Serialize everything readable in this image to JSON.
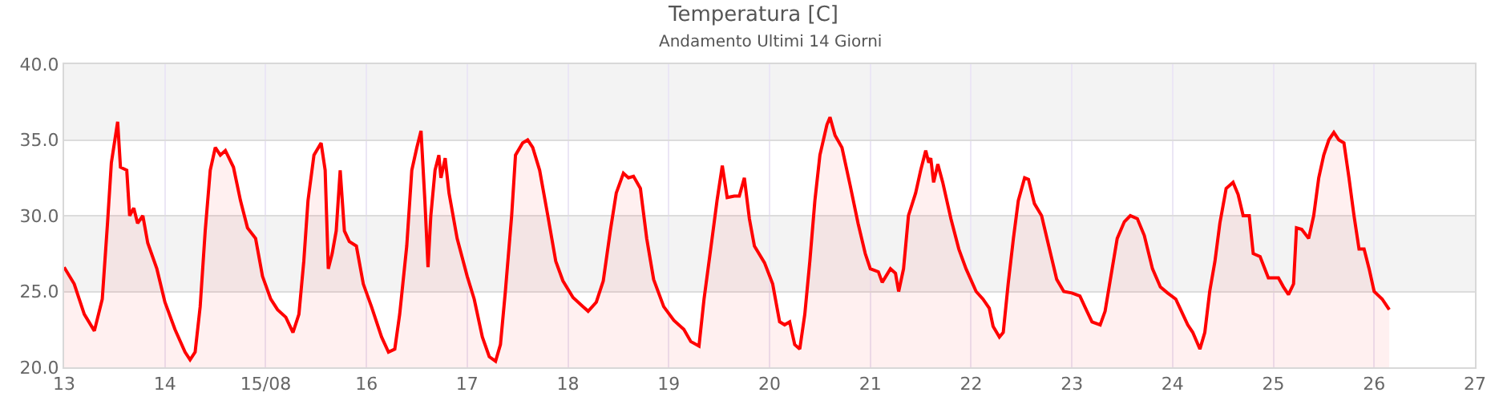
{
  "chart_data": {
    "type": "area",
    "title": "Temperatura [C]",
    "subtitle": "Andamento Ultimi 14 Giorni",
    "x": [
      "--08-13T00:00",
      "--08-13T02:24",
      "--08-13T04:48",
      "--08-13T07:12",
      "--08-13T09:05",
      "--08-13T10:20",
      "--08-13T11:15",
      "--08-13T12:45",
      "--08-13T13:25",
      "--08-13T14:55",
      "--08-13T15:36",
      "--08-13T16:35",
      "--08-13T17:30",
      "--08-13T18:45",
      "--08-13T19:55",
      "--08-13T22:05",
      "--08-14T00:00",
      "--08-14T02:24",
      "--08-14T04:48",
      "--08-14T06:00",
      "--08-14T07:12",
      "--08-14T08:24",
      "--08-14T09:36",
      "--08-14T10:48",
      "--08-14T12:00",
      "--08-14T13:12",
      "--08-14T14:24",
      "--08-14T16:20",
      "--08-14T18:00",
      "--08-14T19:40",
      "--08-14T21:36",
      "--08-14T23:15",
      "--08-15T01:12",
      "--08-15T02:50",
      "--08-15T04:48",
      "--08-15T06:30",
      "--08-15T07:55",
      "--08-15T09:05",
      "--08-15T10:05",
      "--08-15T11:30",
      "--08-15T13:12",
      "--08-15T14:10",
      "--08-15T14:55",
      "--08-15T15:50",
      "--08-15T16:48",
      "--08-15T17:45",
      "--08-15T18:45",
      "--08-15T19:55",
      "--08-15T21:36",
      "--08-15T23:15",
      "--08-16T01:12",
      "--08-16T03:36",
      "--08-16T05:15",
      "--08-16T06:45",
      "--08-16T07:55",
      "--08-16T09:36",
      "--08-16T10:48",
      "--08-16T12:00",
      "--08-16T13:00",
      "--08-16T13:55",
      "--08-16T14:40",
      "--08-16T15:20",
      "--08-16T16:20",
      "--08-16T17:15",
      "--08-16T17:45",
      "--08-16T18:45",
      "--08-16T19:40",
      "--08-16T21:36",
      "--08-17T00:00",
      "--08-17T01:40",
      "--08-17T03:36",
      "--08-17T05:15",
      "--08-17T06:45",
      "--08-17T07:55",
      "--08-17T09:05",
      "--08-17T10:35",
      "--08-17T11:30",
      "--08-17T13:12",
      "--08-17T14:24",
      "--08-17T15:36",
      "--08-17T17:15",
      "--08-17T19:12",
      "--08-17T21:05",
      "--08-17T22:48",
      "--08-18T01:12",
      "--08-18T03:36",
      "--08-18T04:48",
      "--08-18T06:45",
      "--08-18T08:24",
      "--08-18T10:05",
      "--08-18T11:30",
      "--08-18T13:12",
      "--08-18T14:24",
      "--08-18T15:36",
      "--08-18T17:15",
      "--08-18T18:45",
      "--08-18T20:24",
      "--08-18T22:48",
      "--08-19T01:12",
      "--08-19T03:36",
      "--08-19T05:15",
      "--08-19T07:12",
      "--08-19T08:24",
      "--08-19T10:05",
      "--08-19T11:30",
      "--08-19T12:45",
      "--08-19T13:55",
      "--08-19T15:36",
      "--08-19T16:48",
      "--08-19T18:00",
      "--08-19T19:12",
      "--08-19T20:24",
      "--08-19T22:48",
      "--08-20T00:45",
      "--08-20T02:24",
      "--08-20T03:36",
      "--08-20T04:48",
      "--08-20T06:00",
      "--08-20T07:12",
      "--08-20T08:24",
      "--08-20T09:36",
      "--08-20T10:48",
      "--08-20T12:00",
      "--08-20T13:40",
      "--08-20T14:24",
      "--08-20T15:36",
      "--08-20T17:15",
      "--08-20T19:12",
      "--08-20T21:05",
      "--08-20T22:48",
      "--08-21T00:00",
      "--08-21T01:55",
      "--08-21T02:50",
      "--08-21T04:48",
      "--08-21T06:00",
      "--08-21T06:45",
      "--08-21T07:55",
      "--08-21T09:05",
      "--08-21T10:48",
      "--08-21T12:00",
      "--08-21T13:12",
      "--08-21T13:55",
      "--08-21T14:24",
      "--08-21T15:05",
      "--08-21T16:05",
      "--08-21T17:15",
      "--08-21T19:12",
      "--08-21T21:05",
      "--08-21T22:48",
      "--08-22T01:12",
      "--08-22T02:50",
      "--08-22T04:20",
      "--08-22T05:15",
      "--08-22T06:45",
      "--08-22T07:40",
      "--08-22T08:50",
      "--08-22T10:05",
      "--08-22T11:15",
      "--08-22T12:45",
      "--08-22T13:40",
      "--08-22T15:05",
      "--08-22T16:48",
      "--08-22T18:30",
      "--08-22T20:24",
      "--08-22T22:05",
      "--08-23T00:00",
      "--08-23T01:55",
      "--08-23T03:36",
      "--08-23T04:48",
      "--08-23T06:45",
      "--08-23T07:55",
      "--08-23T09:36",
      "--08-23T10:48",
      "--08-23T12:30",
      "--08-23T13:55",
      "--08-23T15:36",
      "--08-23T17:15",
      "--08-23T19:12",
      "--08-23T21:05",
      "--08-23T22:48",
      "--08-24T00:45",
      "--08-24T01:55",
      "--08-24T03:36",
      "--08-24T04:48",
      "--08-24T06:30",
      "--08-24T07:40",
      "--08-24T08:50",
      "--08-24T10:05",
      "--08-24T11:15",
      "--08-24T12:45",
      "--08-24T14:24",
      "--08-24T15:36",
      "--08-24T16:48",
      "--08-24T18:15",
      "--08-24T19:12",
      "--08-24T20:50",
      "--08-24T22:48",
      "--08-25T01:12",
      "--08-25T02:24",
      "--08-25T03:36",
      "--08-25T04:48",
      "--08-25T05:30",
      "--08-25T06:45",
      "--08-25T08:24",
      "--08-25T09:36",
      "--08-25T10:48",
      "--08-25T12:00",
      "--08-25T13:12",
      "--08-25T14:24",
      "--08-25T15:36",
      "--08-25T16:48",
      "--08-25T18:00",
      "--08-25T19:12",
      "--08-25T20:24",
      "--08-25T21:36",
      "--08-25T22:48",
      "--08-26T00:00",
      "--08-26T01:55",
      "--08-26T03:36"
    ],
    "series": [
      {
        "color": "#ff0000",
        "values": [
          26.6,
          25.5,
          23.5,
          22.4,
          24.5,
          29.5,
          33.5,
          36.2,
          33.2,
          33.0,
          30.0,
          30.5,
          29.5,
          30.0,
          28.2,
          26.5,
          24.3,
          22.5,
          21.0,
          20.5,
          21.0,
          24.0,
          29.0,
          33.0,
          34.5,
          34.0,
          34.3,
          33.2,
          31.0,
          29.2,
          28.5,
          26.0,
          24.5,
          23.8,
          23.3,
          22.3,
          23.5,
          27.0,
          31.0,
          34.0,
          34.8,
          33.0,
          26.5,
          27.5,
          29.0,
          33.0,
          29.0,
          28.3,
          28.0,
          25.5,
          24.0,
          22.0,
          21.0,
          21.2,
          23.5,
          28.0,
          33.0,
          34.5,
          35.6,
          31.0,
          26.6,
          30.0,
          33.0,
          34.0,
          32.5,
          33.8,
          31.5,
          28.5,
          26.0,
          24.5,
          22.0,
          20.7,
          20.4,
          21.5,
          25.0,
          30.0,
          34.0,
          34.8,
          35.0,
          34.5,
          33.0,
          30.0,
          27.0,
          25.7,
          24.6,
          24.0,
          23.7,
          24.3,
          25.7,
          29.0,
          31.5,
          32.8,
          32.5,
          32.6,
          31.8,
          28.5,
          25.8,
          24.0,
          23.1,
          22.5,
          21.7,
          21.4,
          24.5,
          28.0,
          31.0,
          33.3,
          31.2,
          31.3,
          31.3,
          32.5,
          29.8,
          28.0,
          26.9,
          25.5,
          23.0,
          22.8,
          23.0,
          21.5,
          21.2,
          23.5,
          27.0,
          31.0,
          34.0,
          36.0,
          36.5,
          35.3,
          34.5,
          32.0,
          29.5,
          27.5,
          26.5,
          26.3,
          25.6,
          26.5,
          26.2,
          25.0,
          26.5,
          30.0,
          31.5,
          33.0,
          34.3,
          33.5,
          33.8,
          32.2,
          33.4,
          32.2,
          29.8,
          27.8,
          26.5,
          25.0,
          24.5,
          23.9,
          22.7,
          22.0,
          22.3,
          25.5,
          28.5,
          31.0,
          32.5,
          32.4,
          30.8,
          30.0,
          28.0,
          25.8,
          25.0,
          24.9,
          24.7,
          23.7,
          23.0,
          22.8,
          23.7,
          26.5,
          28.5,
          29.6,
          30.0,
          29.8,
          28.7,
          26.5,
          25.3,
          24.9,
          24.5,
          23.8,
          22.8,
          22.3,
          21.2,
          22.3,
          25.0,
          27.0,
          29.5,
          31.8,
          32.2,
          31.4,
          30.0,
          30.0,
          27.5,
          27.3,
          25.9,
          25.9,
          25.3,
          24.8,
          25.5,
          29.2,
          29.1,
          28.5,
          30.0,
          32.5,
          34.0,
          35.0,
          35.5,
          35.0,
          34.8,
          32.5,
          30.0,
          27.8,
          27.8,
          26.5,
          25.0,
          24.5,
          23.8
        ]
      }
    ],
    "xlim": [
      "--08-13",
      "--08-27"
    ],
    "xticks": [
      {
        "value": "--08-13",
        "label": "13"
      },
      {
        "value": "--08-14",
        "label": "14"
      },
      {
        "value": "--08-15",
        "label": "15/08"
      },
      {
        "value": "--08-16",
        "label": "16"
      },
      {
        "value": "--08-17",
        "label": "17"
      },
      {
        "value": "--08-18",
        "label": "18"
      },
      {
        "value": "--08-19",
        "label": "19"
      },
      {
        "value": "--08-20",
        "label": "20"
      },
      {
        "value": "--08-21",
        "label": "21"
      },
      {
        "value": "--08-22",
        "label": "22"
      },
      {
        "value": "--08-23",
        "label": "23"
      },
      {
        "value": "--08-24",
        "label": "24"
      },
      {
        "value": "--08-25",
        "label": "25"
      },
      {
        "value": "--08-26",
        "label": "26"
      },
      {
        "value": "--08-27",
        "label": "27"
      }
    ],
    "ylim": [
      20,
      40
    ],
    "yticks": [
      {
        "value": 20,
        "label": "20.0"
      },
      {
        "value": 25,
        "label": "25.0"
      },
      {
        "value": 30,
        "label": "30.0"
      },
      {
        "value": 35,
        "label": "35.0"
      },
      {
        "value": 40,
        "label": "40.0"
      }
    ],
    "bands": [
      {
        "axis": "y",
        "from": 25,
        "to": 30,
        "color": "#f3f3f3"
      },
      {
        "axis": "y",
        "from": 35,
        "to": 40,
        "color": "#f3f3f3"
      }
    ],
    "grid": true,
    "marker": "none",
    "line_style": "solid"
  }
}
